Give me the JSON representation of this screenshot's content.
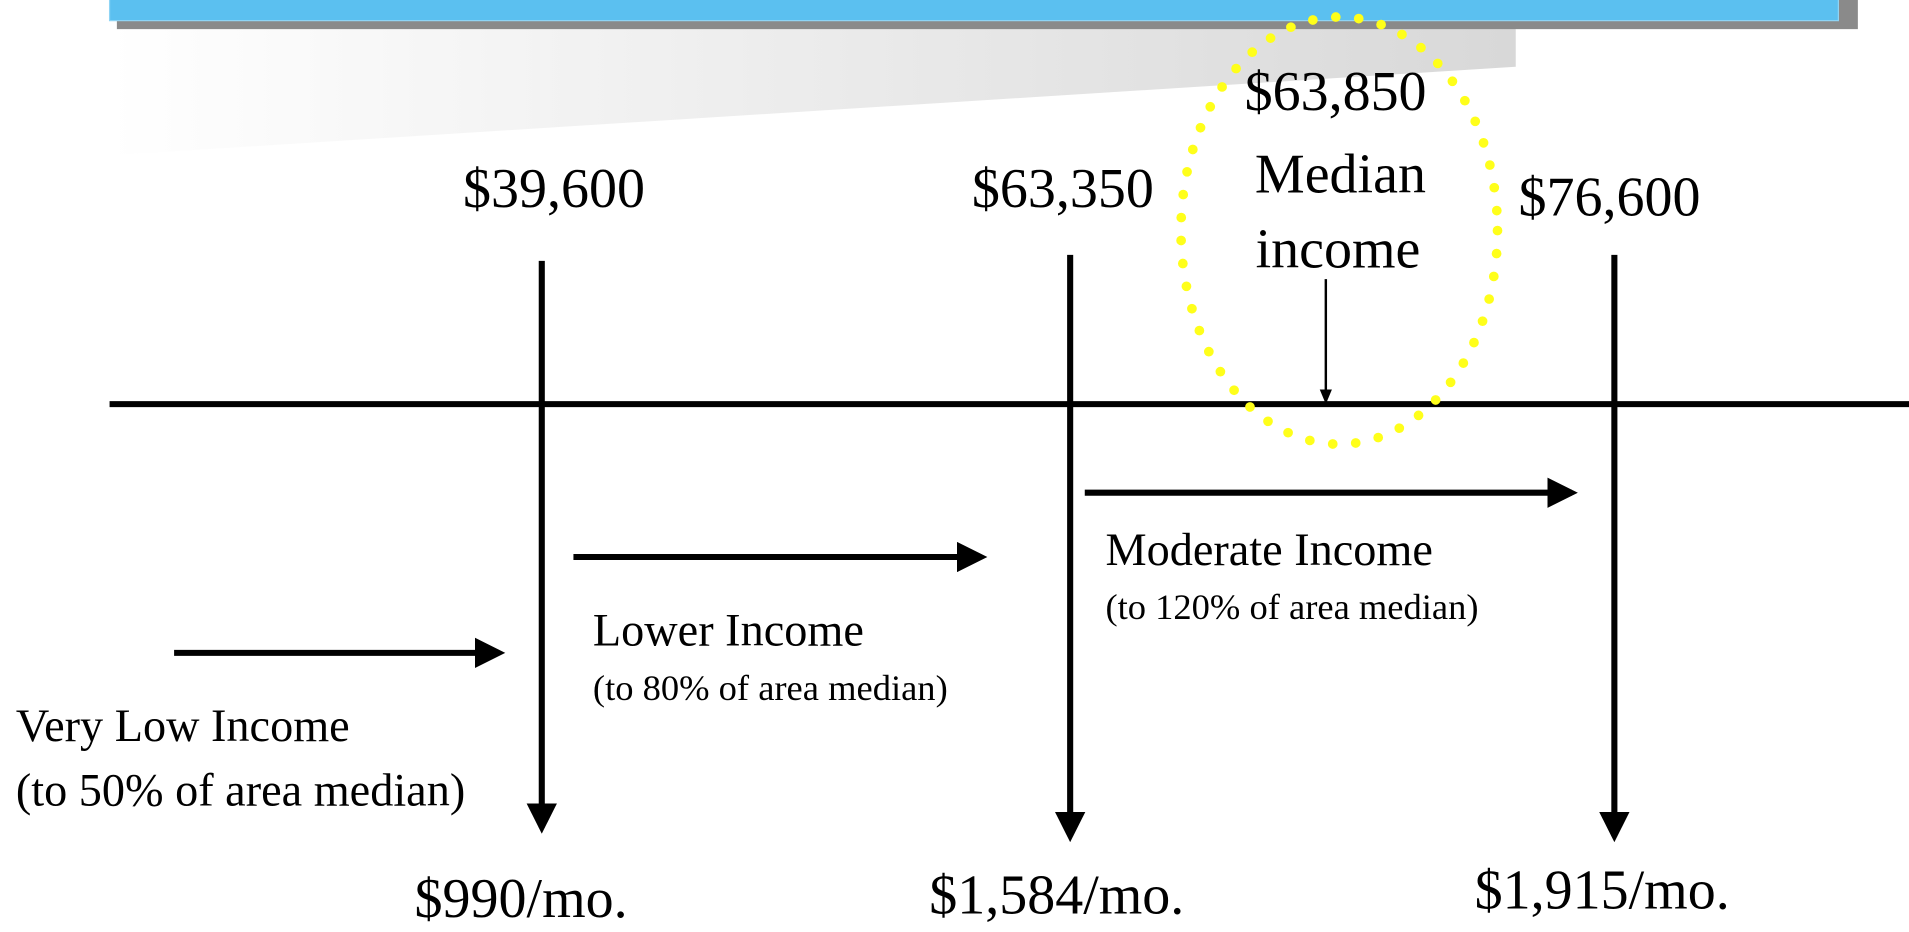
{
  "thresholds": [
    {
      "income": "$39,600",
      "monthly": "$990/mo."
    },
    {
      "income": "$63,350",
      "monthly": "$1,584/mo."
    },
    {
      "income": "$76,600",
      "monthly": "$1,915/mo."
    }
  ],
  "median": {
    "value": "$63,850",
    "label": [
      "Median",
      "income"
    ]
  },
  "bands": [
    {
      "name": "Very Low Income",
      "note": "(to 50% of area median)"
    },
    {
      "name": "Lower Income",
      "note": "(to 80% of area median)"
    },
    {
      "name": "Moderate Income",
      "note": "(to 120% of area median)"
    }
  ]
}
